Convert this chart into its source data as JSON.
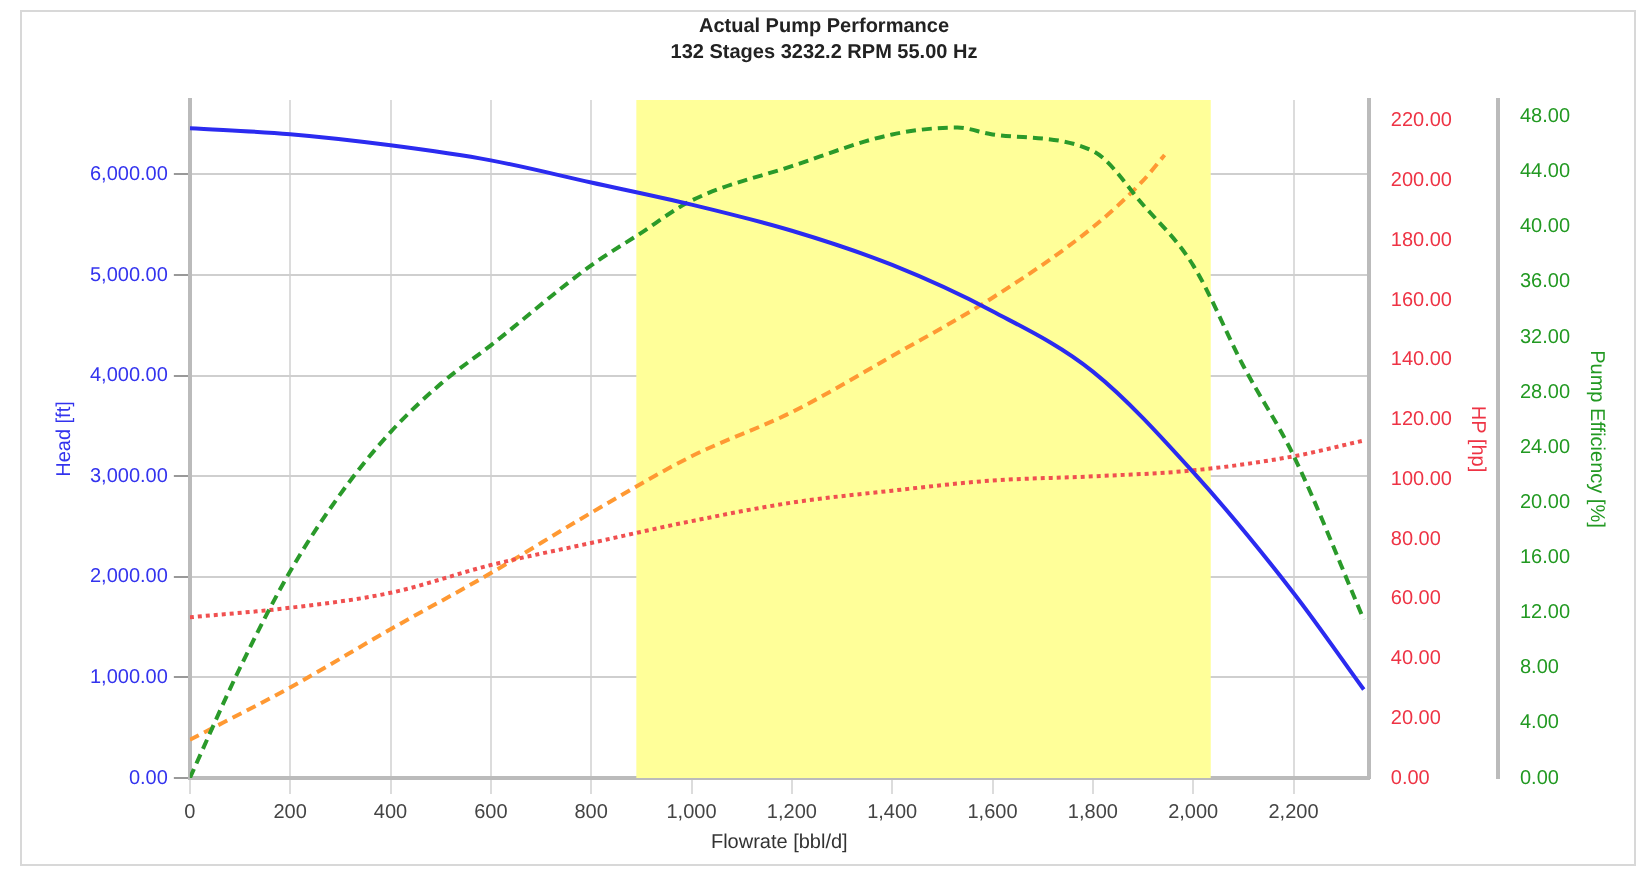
{
  "chart_data": {
    "type": "line",
    "title": "Actual Pump Performance",
    "subtitle": "132 Stages 3232.2 RPM 55.00 Hz",
    "xlabel": "Flowrate [bbl/d]",
    "ylabel": "Head [ft]",
    "y2label": "HP [hp]",
    "y3label": "Pump Efficiency [%]",
    "xlim": [
      0,
      2350
    ],
    "xticks": [
      {
        "value": 0,
        "label": "0"
      },
      {
        "value": 200,
        "label": "200"
      },
      {
        "value": 400,
        "label": "400"
      },
      {
        "value": 600,
        "label": "600"
      },
      {
        "value": 800,
        "label": "800"
      },
      {
        "value": 1000,
        "label": "1,000"
      },
      {
        "value": 1200,
        "label": "1,200"
      },
      {
        "value": 1400,
        "label": "1,400"
      },
      {
        "value": 1600,
        "label": "1,600"
      },
      {
        "value": 1800,
        "label": "1,800"
      },
      {
        "value": 2000,
        "label": "2,000"
      },
      {
        "value": 2200,
        "label": "2,200"
      }
    ],
    "ylim": [
      0,
      6740
    ],
    "yticks": [
      {
        "value": 0,
        "label": "0.00"
      },
      {
        "value": 1000,
        "label": "1,000.00"
      },
      {
        "value": 2000,
        "label": "2,000.00"
      },
      {
        "value": 3000,
        "label": "3,000.00"
      },
      {
        "value": 4000,
        "label": "4,000.00"
      },
      {
        "value": 5000,
        "label": "5,000.00"
      },
      {
        "value": 6000,
        "label": "6,000.00"
      }
    ],
    "y2lim": [
      0,
      227
    ],
    "y2ticks": [
      {
        "value": 0,
        "label": "0.00"
      },
      {
        "value": 20,
        "label": "20.00"
      },
      {
        "value": 40,
        "label": "40.00"
      },
      {
        "value": 60,
        "label": "60.00"
      },
      {
        "value": 80,
        "label": "80.00"
      },
      {
        "value": 100,
        "label": "100.00"
      },
      {
        "value": 120,
        "label": "120.00"
      },
      {
        "value": 140,
        "label": "140.00"
      },
      {
        "value": 160,
        "label": "160.00"
      },
      {
        "value": 180,
        "label": "180.00"
      },
      {
        "value": 200,
        "label": "200.00"
      },
      {
        "value": 220,
        "label": "220.00"
      }
    ],
    "y3lim": [
      0,
      49.2
    ],
    "y3ticks": [
      {
        "value": 0,
        "label": "0.00"
      },
      {
        "value": 4,
        "label": "4.00"
      },
      {
        "value": 8,
        "label": "8.00"
      },
      {
        "value": 12,
        "label": "12.00"
      },
      {
        "value": 16,
        "label": "16.00"
      },
      {
        "value": 20,
        "label": "20.00"
      },
      {
        "value": 24,
        "label": "24.00"
      },
      {
        "value": 28,
        "label": "28.00"
      },
      {
        "value": 32,
        "label": "32.00"
      },
      {
        "value": 36,
        "label": "36.00"
      },
      {
        "value": 40,
        "label": "40.00"
      },
      {
        "value": 44,
        "label": "44.00"
      },
      {
        "value": 48,
        "label": "48.00"
      }
    ],
    "grid": true,
    "marker": "none",
    "bands": [
      {
        "axis": "x",
        "from": 890,
        "to": 2035,
        "color": "#ffff99"
      }
    ],
    "series": [
      {
        "color": "#2b2bf0",
        "line_style": "solid",
        "x": [
          0,
          200,
          400,
          600,
          800,
          1000,
          1200,
          1400,
          1600,
          1800,
          2000,
          2200,
          2340
        ],
        "values": [
          6460,
          6400,
          6290,
          6140,
          5920,
          5700,
          5440,
          5100,
          4640,
          4040,
          3040,
          1840,
          880
        ]
      },
      {
        "color": "#2a9a2a",
        "line_style": "dashed",
        "axis": "y3",
        "x": [
          0,
          100,
          200,
          300,
          400,
          500,
          600,
          800,
          893,
          1000,
          1200,
          1400,
          1530,
          1600,
          1800,
          1900,
          2000,
          2100,
          2200,
          2340
        ],
        "values": [
          0,
          8,
          15,
          20.6,
          25.1,
          28.6,
          31.4,
          37.2,
          39.4,
          41.9,
          44.4,
          46.7,
          47.2,
          46.7,
          45.5,
          41.6,
          37.2,
          29.9,
          23.4,
          11.5
        ]
      },
      {
        "color": "#f05050",
        "line_style": "dotted",
        "axis": "y2",
        "x": [
          0,
          200,
          400,
          600,
          800,
          1000,
          1200,
          1400,
          1600,
          1800,
          2000,
          2200,
          2340
        ],
        "values": [
          53.8,
          57,
          62,
          71.3,
          78.7,
          86,
          92.2,
          96.2,
          99.6,
          101,
          103,
          107.7,
          113
        ]
      },
      {
        "color": "#ff9933",
        "line_style": "dashed",
        "axis": "y2",
        "x": [
          0,
          200,
          400,
          600,
          800,
          1000,
          1200,
          1400,
          1600,
          1800,
          1900,
          1943
        ],
        "values": [
          12.8,
          30.3,
          49.8,
          68.6,
          88.8,
          107.7,
          122.5,
          141.3,
          160.8,
          184.4,
          200,
          208.6
        ]
      }
    ]
  }
}
